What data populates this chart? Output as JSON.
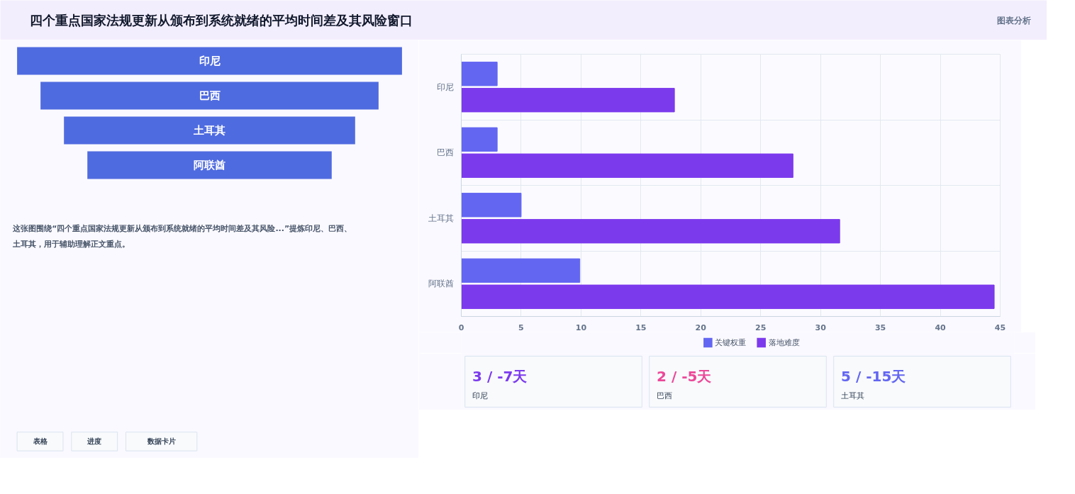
{
  "chart_data": [
    {
      "type": "other",
      "title": "四个重点国家法规更新从颁布到系统就绪的平均时间差及其风险窗口",
      "categories": [
        "印尼",
        "巴西",
        "土耳其",
        "阿联酋"
      ],
      "color": "#4f6be0",
      "annotations": [
        "图表分析",
        "这张图围绕“四个重点国家法规更新从颁布到系统就绪的平均时间差及其风险...”提炼印尼、巴西、土耳其，用于辅助理解正文重点。",
        "表格",
        "进度",
        "数据卡片"
      ]
    },
    {
      "type": "bar",
      "orientation": "horizontal",
      "categories": [
        "印尼",
        "巴西",
        "土耳其",
        "阿联酋"
      ],
      "series": [
        {
          "name": "关键权重",
          "color": "#6366f1",
          "values": [
            3,
            3,
            5,
            9.9
          ]
        },
        {
          "name": "落地难度",
          "color": "#7c3aed",
          "values": [
            17.8,
            27.7,
            31.6,
            44.5
          ]
        }
      ],
      "xlim": [
        0,
        45
      ],
      "xticks": [
        0,
        5,
        10,
        15,
        20,
        25,
        30,
        35,
        40,
        45
      ],
      "grid": true,
      "legend": "bottom"
    },
    {
      "type": "other",
      "categories": [
        "印尼",
        "巴西",
        "土耳其"
      ],
      "value_labels": [
        "3 / -7天",
        "2 / -5天",
        "5 / -15天"
      ]
    }
  ]
}
